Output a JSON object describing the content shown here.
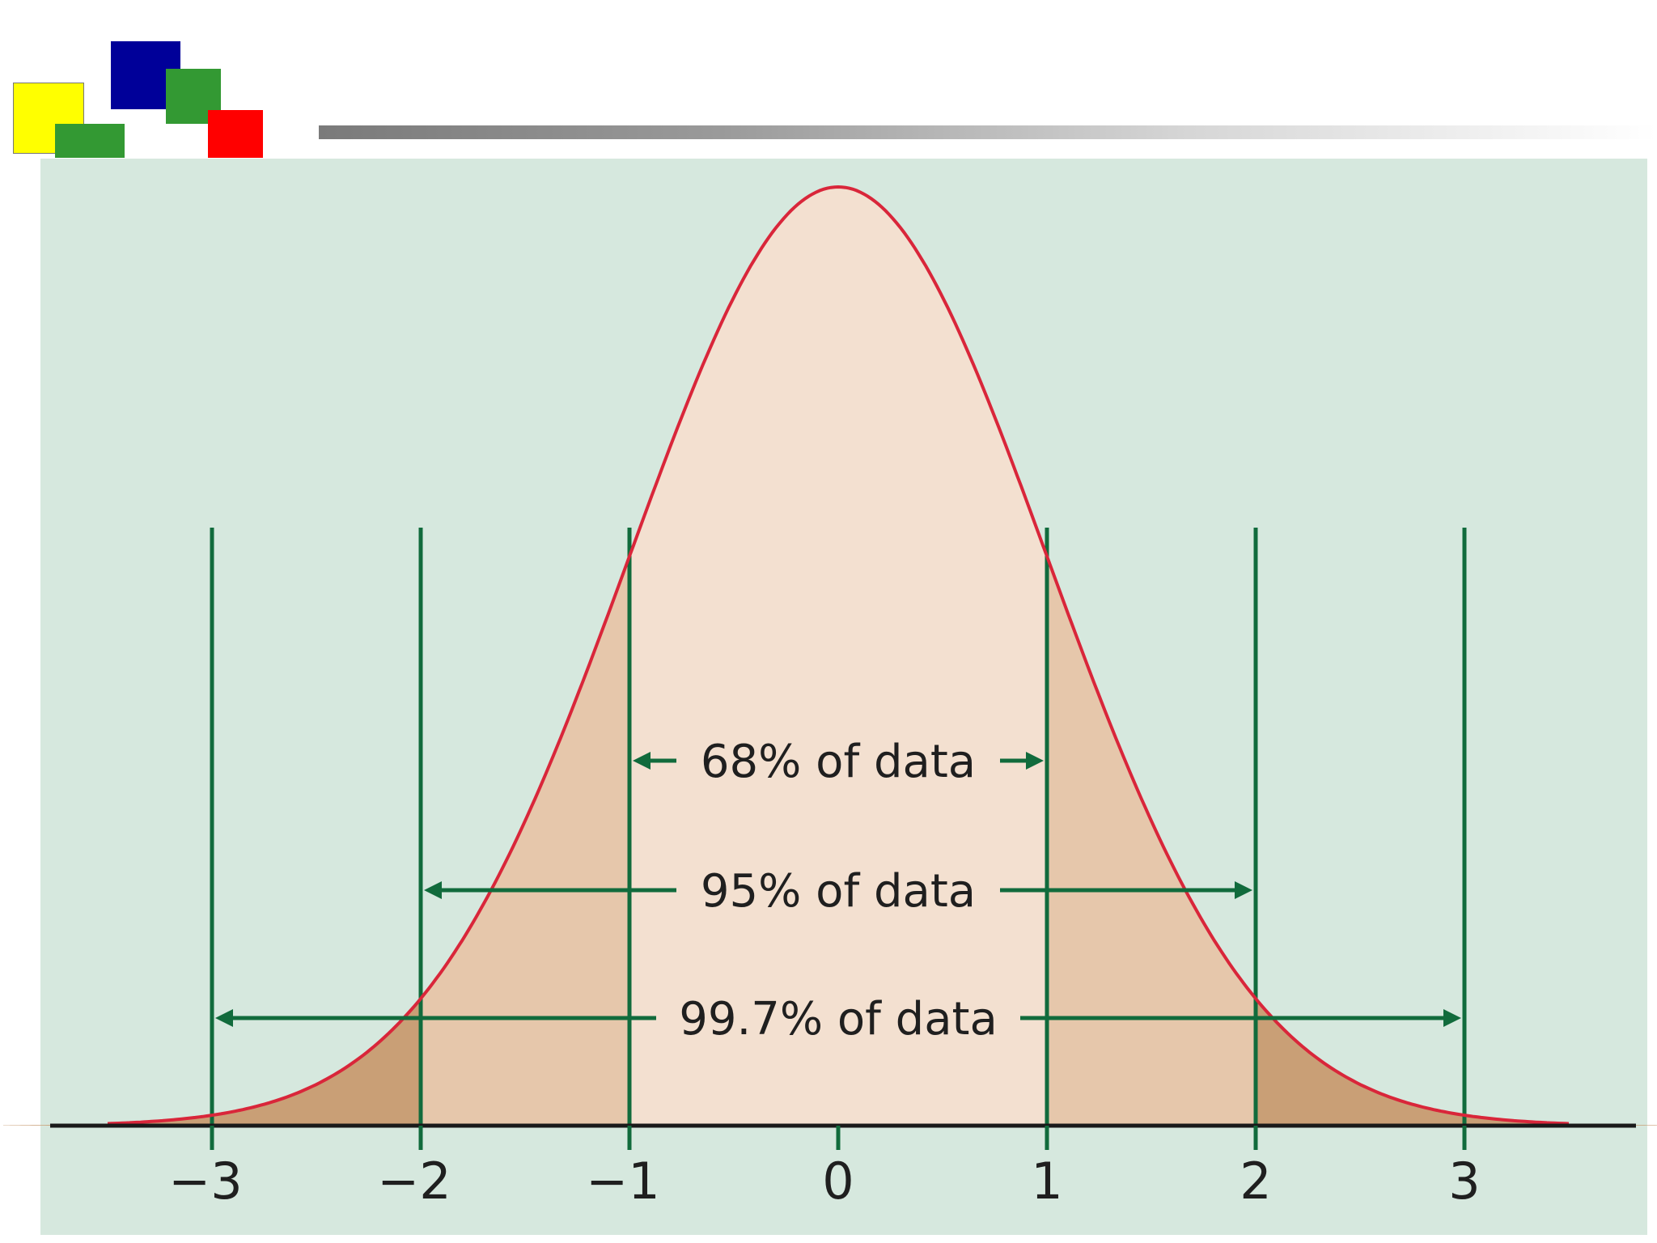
{
  "logo": {
    "colors": {
      "yellow": "#ffff00",
      "blue": "#000099",
      "green": "#339933",
      "red": "#ff0000"
    }
  },
  "colors": {
    "background": "#d6e8de",
    "fill_center": "#f3e0d0",
    "fill_1sd": "#e6c7ab",
    "fill_2sd": "#c99f76",
    "curve": "#d9263a",
    "lines": "#116b3c",
    "axis": "#1a1a1a"
  },
  "chart_data": {
    "type": "area",
    "distribution": "standard normal",
    "mean": 0,
    "sd": 1,
    "xlim": [
      -4,
      4
    ],
    "ticks": [
      {
        "value": -3,
        "label": "−3"
      },
      {
        "value": -2,
        "label": "−2"
      },
      {
        "value": -1,
        "label": "−1"
      },
      {
        "value": 0,
        "label": "0"
      },
      {
        "value": 1,
        "label": "1"
      },
      {
        "value": 2,
        "label": "2"
      },
      {
        "value": 3,
        "label": "3"
      }
    ],
    "reference_lines": [
      -3,
      -2,
      -1,
      1,
      2,
      3
    ],
    "ranges": [
      {
        "from": -1,
        "to": 1,
        "label": "68% of data"
      },
      {
        "from": -2,
        "to": 2,
        "label": "95% of data"
      },
      {
        "from": -3,
        "to": 3,
        "label": "99.7% of data"
      }
    ],
    "title": "",
    "xlabel": "",
    "ylabel": ""
  }
}
